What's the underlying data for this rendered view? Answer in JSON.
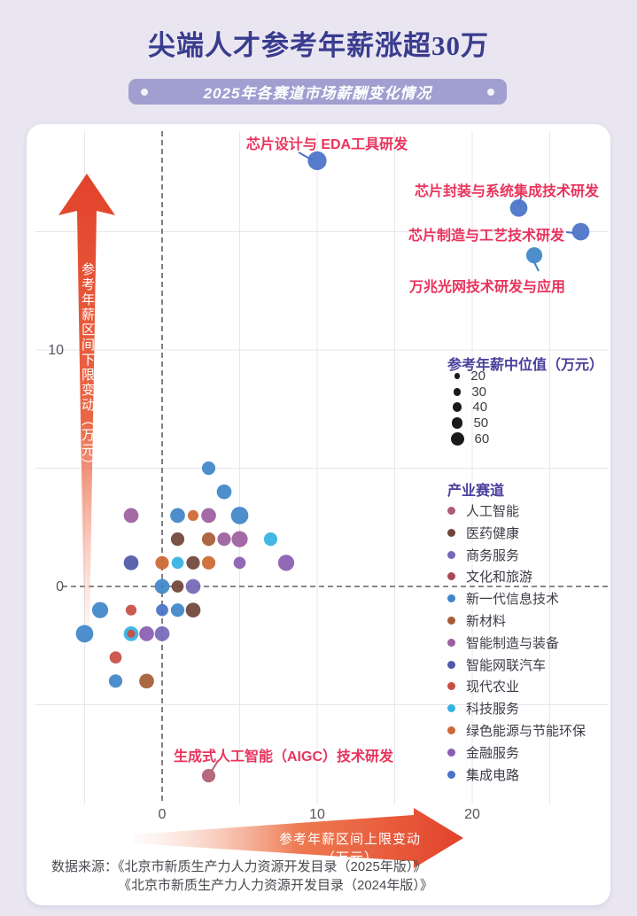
{
  "title": "尖端人才参考年薪涨超30万",
  "subtitle": "2025年各赛道市场薪酬变化情况",
  "axes": {
    "x_label": "参考年薪区间上限变动（万元）",
    "y_label": "参考年薪区间下限变动（万元）",
    "x_ticks": [
      0,
      10,
      20
    ],
    "y_ticks": [
      0,
      10
    ]
  },
  "legend": {
    "size_title": "参考年薪中位值（万元）",
    "sizes": [
      20,
      30,
      40,
      50,
      60
    ],
    "size_dot_color": "#1a1a1a",
    "track_title": "产业赛道",
    "tracks": [
      {
        "name": "人工智能",
        "color": "#b05c72"
      },
      {
        "name": "医药健康",
        "color": "#70453a"
      },
      {
        "name": "商务服务",
        "color": "#7668b8"
      },
      {
        "name": "文化和旅游",
        "color": "#a84a52"
      },
      {
        "name": "新一代信息技术",
        "color": "#3e87c8"
      },
      {
        "name": "新材料",
        "color": "#a55c35"
      },
      {
        "name": "智能制造与装备",
        "color": "#9c5f9e"
      },
      {
        "name": "智能网联汽车",
        "color": "#5058aa"
      },
      {
        "name": "现代农业",
        "color": "#c84e44"
      },
      {
        "name": "科技服务",
        "color": "#35b1e2"
      },
      {
        "name": "绿色能源与节能环保",
        "color": "#cc6833"
      },
      {
        "name": "金融服务",
        "color": "#8a5cb2"
      },
      {
        "name": "集成电路",
        "color": "#4a72c8"
      }
    ]
  },
  "chart_data": {
    "type": "scatter",
    "xlabel": "参考年薪区间上限变动（万元）",
    "ylabel": "参考年薪区间下限变动（万元）",
    "xlim": [
      -7,
      29
    ],
    "ylim": [
      -10,
      19
    ],
    "grid": true,
    "points": [
      {
        "x": 10,
        "y": 18,
        "size": 60,
        "track": 12,
        "label": "芯片设计与 EDA工具研发"
      },
      {
        "x": 23,
        "y": 16,
        "size": 55,
        "track": 12,
        "label": "芯片封装与系统集成技术研发"
      },
      {
        "x": 27,
        "y": 15,
        "size": 55,
        "track": 12,
        "label": "芯片制造与工艺技术研发"
      },
      {
        "x": 24,
        "y": 14,
        "size": 50,
        "track": 4,
        "label": "万兆光网技术研发与应用"
      },
      {
        "x": 3,
        "y": -8,
        "size": 40,
        "track": 0,
        "label": "生成式人工智能（AIGC）技术研发"
      },
      {
        "x": 3,
        "y": 5,
        "size": 40,
        "track": 4
      },
      {
        "x": 4,
        "y": 4,
        "size": 45,
        "track": 4
      },
      {
        "x": -2,
        "y": 3,
        "size": 45,
        "track": 6
      },
      {
        "x": 1,
        "y": 3,
        "size": 45,
        "track": 4
      },
      {
        "x": 2,
        "y": 3,
        "size": 30,
        "track": 10
      },
      {
        "x": 3,
        "y": 3,
        "size": 45,
        "track": 6
      },
      {
        "x": 5,
        "y": 3,
        "size": 55,
        "track": 4
      },
      {
        "x": 1,
        "y": 2,
        "size": 40,
        "track": 1
      },
      {
        "x": 3,
        "y": 2,
        "size": 40,
        "track": 5
      },
      {
        "x": 4,
        "y": 2,
        "size": 40,
        "track": 6
      },
      {
        "x": 5,
        "y": 2,
        "size": 50,
        "track": 6
      },
      {
        "x": 7,
        "y": 2,
        "size": 40,
        "track": 9
      },
      {
        "x": -2,
        "y": 1,
        "size": 45,
        "track": 7
      },
      {
        "x": 0,
        "y": 1,
        "size": 40,
        "track": 10
      },
      {
        "x": 1,
        "y": 1,
        "size": 35,
        "track": 9
      },
      {
        "x": 2,
        "y": 1,
        "size": 40,
        "track": 1
      },
      {
        "x": 3,
        "y": 1,
        "size": 40,
        "track": 10
      },
      {
        "x": 5,
        "y": 1,
        "size": 35,
        "track": 11
      },
      {
        "x": 8,
        "y": 1,
        "size": 50,
        "track": 11
      },
      {
        "x": 0,
        "y": 0,
        "size": 45,
        "track": 4
      },
      {
        "x": 1,
        "y": 0,
        "size": 35,
        "track": 1
      },
      {
        "x": 2,
        "y": 0,
        "size": 45,
        "track": 2
      },
      {
        "x": -4,
        "y": -1,
        "size": 50,
        "track": 4
      },
      {
        "x": -2,
        "y": -1,
        "size": 30,
        "track": 8
      },
      {
        "x": 0,
        "y": -1,
        "size": 35,
        "track": 12
      },
      {
        "x": 1,
        "y": -1,
        "size": 40,
        "track": 4
      },
      {
        "x": 2,
        "y": -1,
        "size": 45,
        "track": 1
      },
      {
        "x": -5,
        "y": -2,
        "size": 55,
        "track": 4
      },
      {
        "x": -2,
        "y": -2,
        "size": 45,
        "track": 9
      },
      {
        "x": -2,
        "y": -2,
        "size": 20,
        "track": 8
      },
      {
        "x": -1,
        "y": -2,
        "size": 45,
        "track": 11
      },
      {
        "x": 0,
        "y": -2,
        "size": 45,
        "track": 2
      },
      {
        "x": -3,
        "y": -3,
        "size": 35,
        "track": 8
      },
      {
        "x": -3,
        "y": -4,
        "size": 40,
        "track": 4
      },
      {
        "x": -1,
        "y": -4,
        "size": 45,
        "track": 5
      }
    ],
    "annotations": [
      {
        "text": "芯片设计与 EDA工具研发",
        "x": 10,
        "y": 18
      },
      {
        "text": "芯片封装与系统集成技术研发",
        "x": 23,
        "y": 16
      },
      {
        "text": "芯片制造与工艺技术研发",
        "x": 27,
        "y": 15
      },
      {
        "text": "万兆光网技术研发与应用",
        "x": 24,
        "y": 14
      },
      {
        "text": "生成式人工智能（AIGC）技术研发",
        "x": 3,
        "y": -8
      }
    ]
  },
  "source": {
    "line1": "数据来源：《北京市新质生产力人力资源开发目录（2025年版）》",
    "line2": "《北京市新质生产力人力资源开发目录（2024年版）》"
  },
  "colors": {
    "background": "#e9e6f1",
    "card": "#ffffff",
    "title": "#393c8e",
    "banner": "#a19fd0",
    "annotation": "#e8345c",
    "legend_header": "#4a3f9c",
    "arrow_red": "#e2432a",
    "grid": "#e8e6ec",
    "zero_line": "#606060"
  }
}
